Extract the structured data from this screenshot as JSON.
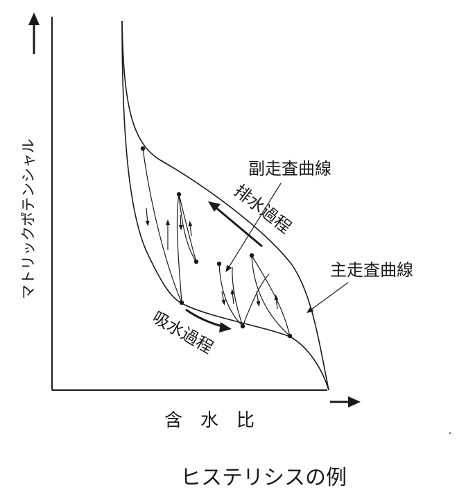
{
  "labels": {
    "y_axis": "マトリックポテンシャル",
    "x_axis": "含　水　比",
    "scanning_curve": "副走査曲線",
    "main_curve": "主走査曲線",
    "drying_process": "排水過程",
    "wetting_process": "吸水過程",
    "caption": "ヒステリシスの例"
  },
  "colors": {
    "ink": "#1a1a1a",
    "background": "#ffffff"
  }
}
